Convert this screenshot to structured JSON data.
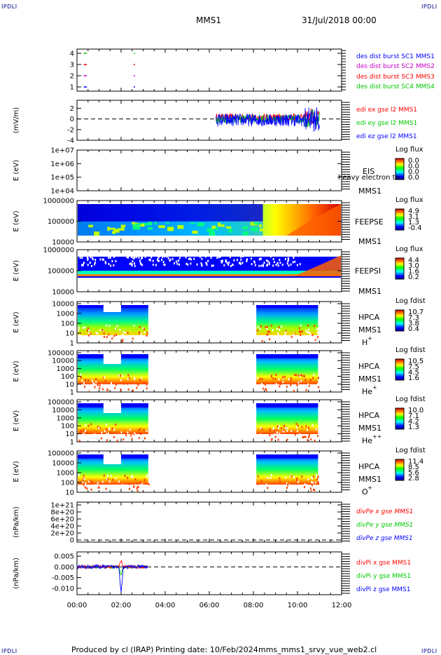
{
  "corner_label": "IPDLI",
  "header": {
    "title": "MMS1",
    "date": "31/Jul/2018 00:00"
  },
  "footer": {
    "produced": "Produced by cl (IRAP)",
    "printing": "Printing date: 10/Feb/2024",
    "script": "mms_mms1_srvy_vue_web2.cl"
  },
  "colors": {
    "red": "#ff0000",
    "green": "#00c800",
    "blue": "#0000ff",
    "magenta": "#c800c8",
    "darkblue": "#00008b"
  },
  "time_axis": {
    "ticks": [
      "00:00",
      "02:00",
      "04:00",
      "06:00",
      "08:00",
      "10:00",
      "12:00"
    ],
    "hours": [
      0,
      2,
      4,
      6,
      8,
      10,
      12
    ]
  },
  "chart_data": [
    {
      "type": "scatter",
      "id": "burst",
      "ylabels": [
        "4",
        "3",
        "2",
        "1"
      ],
      "series": [
        {
          "name": "des dist burst SC1 MMS1",
          "color": "#0000ff"
        },
        {
          "name": "des dist burst SC2 MMS2",
          "color": "#c800c8"
        },
        {
          "name": "des dist burst SC3 MMS3",
          "color": "#ff0000"
        },
        {
          "name": "des dist burst SC4 MMS4",
          "color": "#00c800"
        }
      ]
    },
    {
      "type": "line",
      "id": "edi",
      "ylabel": "(mV/m)",
      "yticks": [
        "2",
        "0",
        "-2",
        "-4"
      ],
      "ylim": [
        -4,
        3.5
      ],
      "series": [
        {
          "name": "edi ex gse l2 MMS1",
          "color": "#ff0000"
        },
        {
          "name": "edi ey gse l2 MMS1",
          "color": "#00c800"
        },
        {
          "name": "edi ez gse l2 MMS1",
          "color": "#0000ff"
        }
      ],
      "x_range_hours": [
        6.3,
        11.0
      ]
    },
    {
      "type": "heatmap",
      "id": "eis",
      "ylabel": "E (eV)",
      "yticks": [
        "1e+07",
        "1e+06",
        "1e+05",
        "1e+04"
      ],
      "instrument": "EIS",
      "spacecraft": "MMS1",
      "extra": "heavy electron to",
      "colorbar_title": "Log flux",
      "colorbar_ticks": [
        "0.0",
        "0.0",
        "0.0",
        "0.0"
      ]
    },
    {
      "type": "heatmap",
      "id": "feepse",
      "ylabel": "E (eV)",
      "yticks": [
        "1000000",
        "100000",
        "10000"
      ],
      "instrument": "FEEPSE",
      "spacecraft": "MMS1",
      "colorbar_title": "Log flux",
      "colorbar_ticks": [
        "4.9",
        "3.1",
        "1.3",
        "-0.4"
      ]
    },
    {
      "type": "heatmap",
      "id": "feepsi",
      "ylabel": "E (eV)",
      "yticks": [
        "1000000",
        "100000",
        "10000"
      ],
      "instrument": "FEEPSI",
      "spacecraft": "MMS1",
      "colorbar_title": "Log flux",
      "colorbar_ticks": [
        "4.4",
        "3.0",
        "1.6",
        "0.2"
      ]
    },
    {
      "type": "heatmap",
      "id": "hpca_h",
      "ylabel": "E (eV)",
      "yticks": [
        "10000",
        "1000",
        "100",
        "10",
        "1"
      ],
      "instrument": "HPCA",
      "spacecraft": "MMS1",
      "species": "H",
      "charge": "+",
      "colorbar_title": "Log fdist",
      "colorbar_ticks": [
        "10.7",
        "7.3",
        "3.8",
        "0.4"
      ]
    },
    {
      "type": "heatmap",
      "id": "hpca_he",
      "ylabel": "E (eV)",
      "yticks": [
        "100000",
        "10000",
        "1000",
        "100",
        "10",
        "1"
      ],
      "instrument": "HPCA",
      "spacecraft": "MMS1",
      "species": "He",
      "charge": "+",
      "colorbar_title": "Log fdist",
      "colorbar_ticks": [
        "10.5",
        "7.5",
        "4.5",
        "1.6"
      ]
    },
    {
      "type": "heatmap",
      "id": "hpca_he2",
      "ylabel": "E (eV)",
      "yticks": [
        "100000",
        "10000",
        "1000",
        "100",
        "10",
        "1"
      ],
      "instrument": "HPCA",
      "spacecraft": "MMS1",
      "species": "He",
      "charge": "++",
      "colorbar_title": "Log fdist",
      "colorbar_ticks": [
        "10.0",
        "7.1",
        "4.2",
        "1.3"
      ]
    },
    {
      "type": "heatmap",
      "id": "hpca_o",
      "ylabel": "E (eV)",
      "yticks": [
        "100000",
        "10000",
        "1000",
        "100",
        "10"
      ],
      "instrument": "HPCA",
      "spacecraft": "MMS1",
      "species": "O",
      "charge": "+",
      "colorbar_title": "Log fdist",
      "colorbar_ticks": [
        "11.4",
        "8.5",
        "5.6",
        "2.8"
      ]
    },
    {
      "type": "line",
      "id": "divpe",
      "ylabel": "(nPa/km)",
      "yticks": [
        "1e+21",
        "8e+20",
        "6e+20",
        "4e+20",
        "2e+20",
        "0"
      ],
      "series": [
        {
          "name": "divPe x gse MMS1",
          "color": "#ff0000"
        },
        {
          "name": "divPe y gse MMS1",
          "color": "#00c800"
        },
        {
          "name": "divPe z gse MMS1",
          "color": "#0000ff"
        }
      ]
    },
    {
      "type": "line",
      "id": "divpi",
      "ylabel": "(nPa/km)",
      "yticks": [
        "0.005",
        "0.000",
        "-0.005",
        "-0.010"
      ],
      "ylim": [
        -0.013,
        0.007
      ],
      "series": [
        {
          "name": "divPi x gse MMS1",
          "color": "#ff0000"
        },
        {
          "name": "divPi y gse MMS1",
          "color": "#00c800"
        },
        {
          "name": "divPi z gse MMS1",
          "color": "#0000ff"
        }
      ]
    }
  ]
}
